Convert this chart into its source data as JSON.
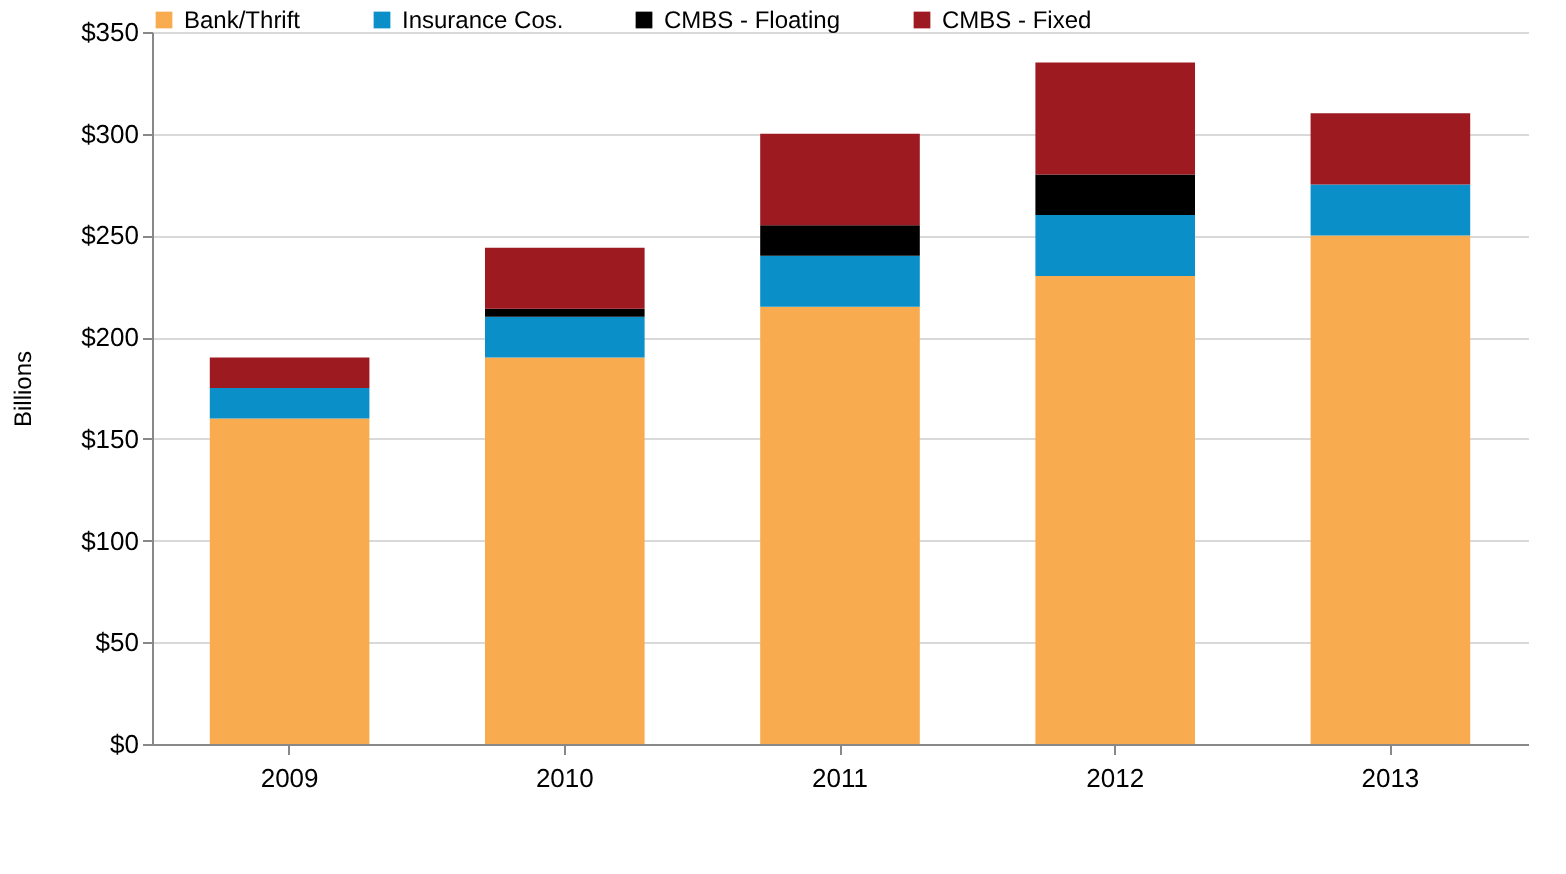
{
  "chart_data": {
    "type": "bar",
    "stacked": true,
    "ylabel": "Billions",
    "categories": [
      "2009",
      "2010",
      "2011",
      "2012",
      "2013"
    ],
    "series": [
      {
        "name": "Bank/Thrift",
        "color": "#f9ab50",
        "values": [
          160,
          190,
          215,
          230,
          250
        ]
      },
      {
        "name": "Insurance Cos.",
        "color": "#0a8fc9",
        "values": [
          15,
          20,
          25,
          30,
          25
        ]
      },
      {
        "name": "CMBS - Floating",
        "color": "#000000",
        "values": [
          null,
          4,
          15,
          20,
          null
        ]
      },
      {
        "name": "CMBS - Fixed",
        "color": "#9e1a21",
        "values": [
          15,
          30,
          45,
          55,
          35
        ]
      }
    ],
    "ylim": [
      0,
      350
    ],
    "yticks": [
      {
        "value": 0,
        "label": "$0"
      },
      {
        "value": 50,
        "label": "$50"
      },
      {
        "value": 100,
        "label": "$100"
      },
      {
        "value": 150,
        "label": "$150"
      },
      {
        "value": 200,
        "label": "$200"
      },
      {
        "value": 250,
        "label": "$250"
      },
      {
        "value": 300,
        "label": "$300"
      },
      {
        "value": 350,
        "label": "$350"
      }
    ],
    "grid": "y",
    "legend": "top"
  }
}
